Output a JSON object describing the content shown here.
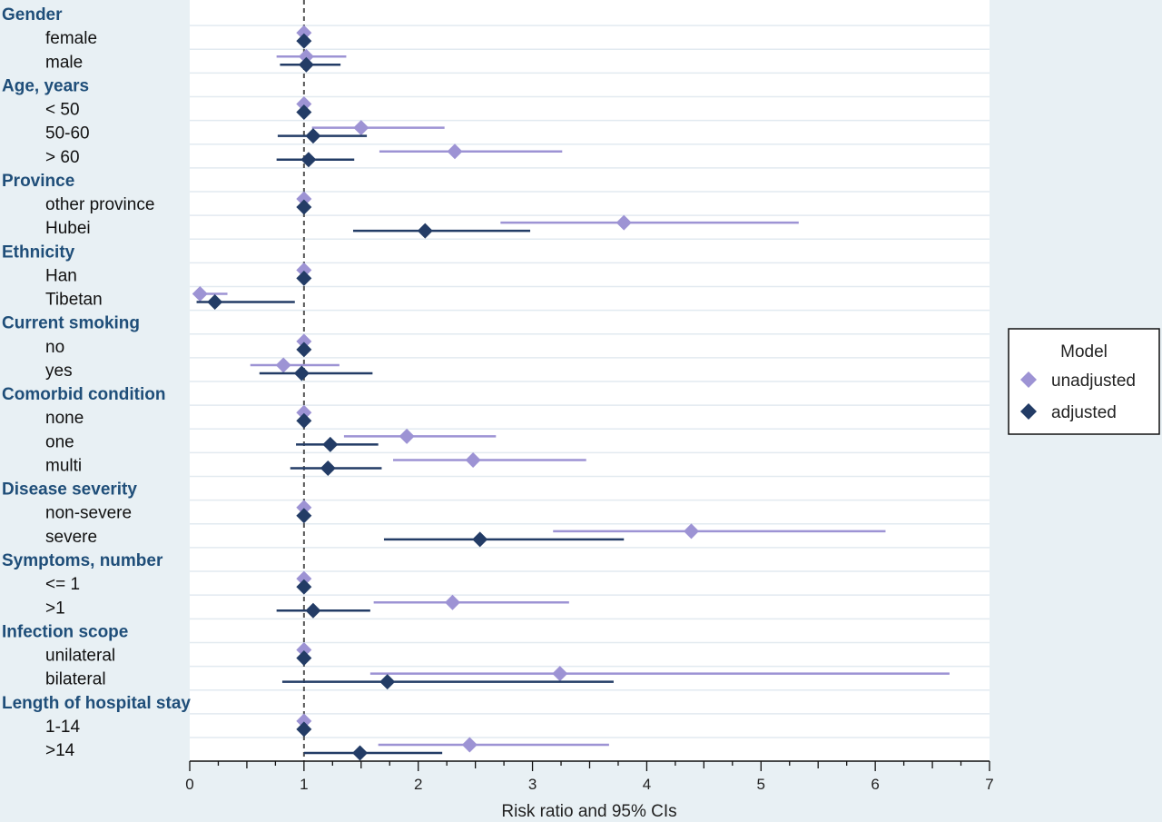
{
  "chart_data": {
    "type": "forest",
    "xlabel": "Risk ratio and 95% CIs",
    "xlim": [
      0,
      7
    ],
    "xticks": [
      "0",
      "1",
      "2",
      "3",
      "4",
      "5",
      "6",
      "7"
    ],
    "reference_line": 1,
    "legend": {
      "title": "Model",
      "placement": "right",
      "entries": [
        "unadjusted",
        "adjusted"
      ]
    },
    "colors": {
      "unadjusted": "#9d93d4",
      "adjusted": "#233c66",
      "group_label": "#1f4e79"
    },
    "rows": [
      {
        "kind": "group",
        "label": "Gender"
      },
      {
        "kind": "item",
        "label": "female",
        "unadjusted": [
          1,
          1,
          1
        ],
        "adjusted": [
          1,
          1,
          1
        ]
      },
      {
        "kind": "item",
        "label": "male",
        "unadjusted": [
          1.02,
          0.76,
          1.37
        ],
        "adjusted": [
          1.02,
          0.79,
          1.32
        ]
      },
      {
        "kind": "group",
        "label": "Age, years"
      },
      {
        "kind": "item",
        "label": "< 50",
        "unadjusted": [
          1,
          1,
          1
        ],
        "adjusted": [
          1,
          1,
          1
        ]
      },
      {
        "kind": "item",
        "label": "50-60",
        "unadjusted": [
          1.5,
          1.07,
          2.23
        ],
        "adjusted": [
          1.08,
          0.77,
          1.55
        ]
      },
      {
        "kind": "item",
        "label": "> 60",
        "unadjusted": [
          2.32,
          1.66,
          3.26
        ],
        "adjusted": [
          1.04,
          0.76,
          1.44
        ]
      },
      {
        "kind": "group",
        "label": "Province"
      },
      {
        "kind": "item",
        "label": "other province",
        "unadjusted": [
          1,
          1,
          1
        ],
        "adjusted": [
          1,
          1,
          1
        ]
      },
      {
        "kind": "item",
        "label": "Hubei",
        "unadjusted": [
          3.8,
          2.72,
          5.33
        ],
        "adjusted": [
          2.06,
          1.43,
          2.98
        ]
      },
      {
        "kind": "group",
        "label": "Ethnicity"
      },
      {
        "kind": "item",
        "label": "Han",
        "unadjusted": [
          1,
          1,
          1
        ],
        "adjusted": [
          1,
          1,
          1
        ]
      },
      {
        "kind": "item",
        "label": "Tibetan",
        "unadjusted": [
          0.09,
          0.03,
          0.33
        ],
        "adjusted": [
          0.22,
          0.06,
          0.92
        ]
      },
      {
        "kind": "group",
        "label": "Current smoking"
      },
      {
        "kind": "item",
        "label": "no",
        "unadjusted": [
          1,
          1,
          1
        ],
        "adjusted": [
          1,
          1,
          1
        ]
      },
      {
        "kind": "item",
        "label": "yes",
        "unadjusted": [
          0.82,
          0.53,
          1.31
        ],
        "adjusted": [
          0.98,
          0.61,
          1.6
        ]
      },
      {
        "kind": "group",
        "label": "Comorbid condition"
      },
      {
        "kind": "item",
        "label": "none",
        "unadjusted": [
          1,
          1,
          1
        ],
        "adjusted": [
          1,
          1,
          1
        ]
      },
      {
        "kind": "item",
        "label": "one",
        "unadjusted": [
          1.9,
          1.35,
          2.68
        ],
        "adjusted": [
          1.23,
          0.93,
          1.65
        ]
      },
      {
        "kind": "item",
        "label": "multi",
        "unadjusted": [
          2.48,
          1.78,
          3.47
        ],
        "adjusted": [
          1.21,
          0.88,
          1.68
        ]
      },
      {
        "kind": "group",
        "label": "Disease severity"
      },
      {
        "kind": "item",
        "label": "non-severe",
        "unadjusted": [
          1,
          1,
          1
        ],
        "adjusted": [
          1,
          1,
          1
        ]
      },
      {
        "kind": "item",
        "label": "severe",
        "unadjusted": [
          4.39,
          3.18,
          6.09
        ],
        "adjusted": [
          2.54,
          1.7,
          3.8
        ]
      },
      {
        "kind": "group",
        "label": "Symptoms, number"
      },
      {
        "kind": "item",
        "label": "<= 1",
        "unadjusted": [
          1,
          1,
          1
        ],
        "adjusted": [
          1,
          1,
          1
        ]
      },
      {
        "kind": "item",
        "label": ">1",
        "unadjusted": [
          2.3,
          1.61,
          3.32
        ],
        "adjusted": [
          1.08,
          0.76,
          1.58
        ]
      },
      {
        "kind": "group",
        "label": "Infection scope"
      },
      {
        "kind": "item",
        "label": "unilateral",
        "unadjusted": [
          1,
          1,
          1
        ],
        "adjusted": [
          1,
          1,
          1
        ]
      },
      {
        "kind": "item",
        "label": "bilateral",
        "unadjusted": [
          3.24,
          1.58,
          6.65
        ],
        "adjusted": [
          1.73,
          0.81,
          3.71
        ]
      },
      {
        "kind": "group",
        "label": "Length of hospital stay"
      },
      {
        "kind": "item",
        "label": "1-14",
        "unadjusted": [
          1,
          1,
          1
        ],
        "adjusted": [
          1,
          1,
          1
        ]
      },
      {
        "kind": "item",
        "label": ">14",
        "unadjusted": [
          2.45,
          1.65,
          3.67
        ],
        "adjusted": [
          1.49,
          1.0,
          2.21
        ]
      }
    ]
  }
}
